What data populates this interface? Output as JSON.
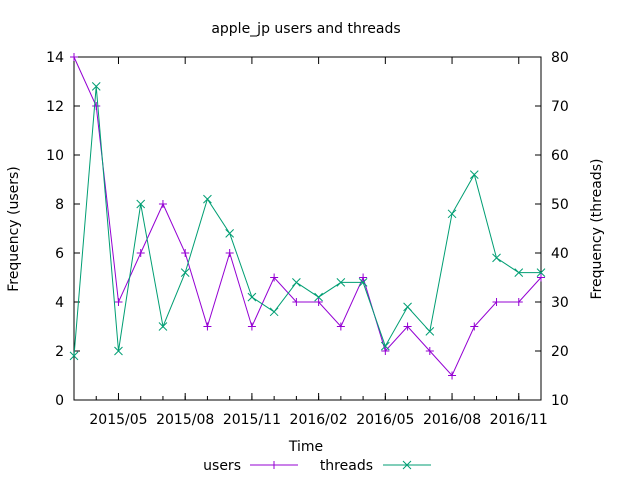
{
  "chart_data": {
    "type": "line",
    "title": "apple_jp users and threads",
    "xlabel": "Time",
    "ylabel": "Frequency (users)",
    "y2label": "Frequency (threads)",
    "x": [
      "2015-03",
      "2015-04",
      "2015-05",
      "2015-06",
      "2015-07",
      "2015-08",
      "2015-09",
      "2015-10",
      "2015-11",
      "2015-12",
      "2016-01",
      "2016-02",
      "2016-03",
      "2016-04",
      "2016-05",
      "2016-06",
      "2016-07",
      "2016-08",
      "2016-09",
      "2016-10",
      "2016-11",
      "2016-12"
    ],
    "xticks": [
      "2015/05",
      "2015/08",
      "2015/11",
      "2016/02",
      "2016/05",
      "2016/08",
      "2016/11"
    ],
    "ylim": [
      0,
      14
    ],
    "yticks": [
      "0",
      "2",
      "4",
      "6",
      "8",
      "10",
      "12",
      "14"
    ],
    "y2lim": [
      10,
      80
    ],
    "y2ticks": [
      "10",
      "20",
      "30",
      "40",
      "50",
      "60",
      "70",
      "80"
    ],
    "legend_position": "bottom",
    "series": [
      {
        "name": "users",
        "axis": "left",
        "color": "#9400d3",
        "marker": "plus",
        "values": [
          14,
          12,
          4,
          6,
          8,
          6,
          3,
          6,
          3,
          5,
          4,
          4,
          3,
          5,
          2,
          3,
          2,
          1,
          3,
          4,
          4,
          5
        ]
      },
      {
        "name": "threads",
        "axis": "right",
        "color": "#009e73",
        "marker": "cross",
        "values": [
          19,
          74,
          20,
          50,
          25,
          36,
          51,
          44,
          31,
          28,
          34,
          31,
          34,
          34,
          21,
          29,
          24,
          48,
          56,
          39,
          36,
          36
        ]
      }
    ]
  }
}
